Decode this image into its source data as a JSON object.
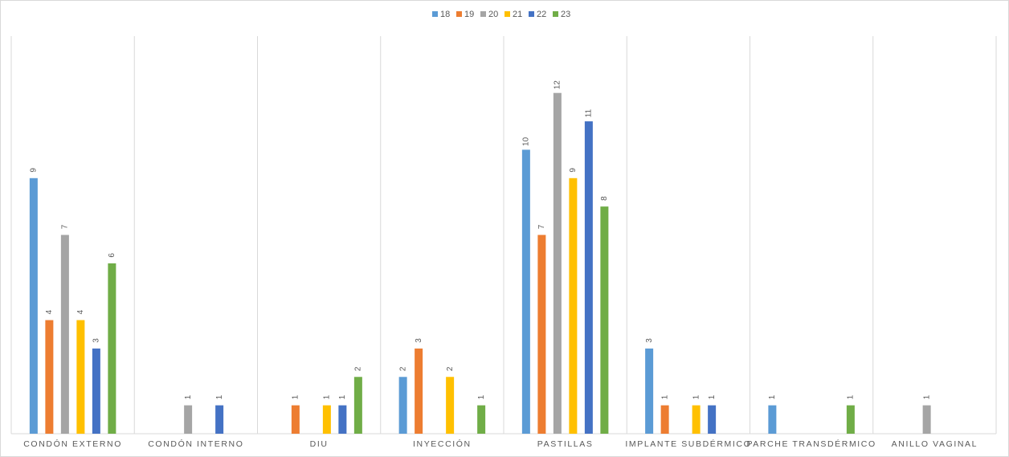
{
  "chart_data": {
    "type": "bar",
    "categories": [
      "CONDÓN EXTERNO",
      "CONDÓN INTERNO",
      "DIU",
      "INYECCIÓN",
      "PASTILLAS",
      "IMPLANTE SUBDÉRMICO",
      "PARCHE TRANSDÉRMICO",
      "ANILLO VAGINAL"
    ],
    "series": [
      {
        "name": "18",
        "color": "#5b9bd5",
        "values": [
          9,
          null,
          null,
          2,
          10,
          3,
          1,
          null
        ]
      },
      {
        "name": "19",
        "color": "#ed7d31",
        "values": [
          4,
          null,
          1,
          3,
          7,
          1,
          null,
          null
        ]
      },
      {
        "name": "20",
        "color": "#a5a5a5",
        "values": [
          7,
          1,
          null,
          null,
          12,
          null,
          null,
          1
        ]
      },
      {
        "name": "21",
        "color": "#ffc000",
        "values": [
          4,
          null,
          1,
          2,
          9,
          1,
          null,
          null
        ]
      },
      {
        "name": "22",
        "color": "#4472c4",
        "values": [
          3,
          1,
          1,
          null,
          11,
          1,
          null,
          null
        ]
      },
      {
        "name": "23",
        "color": "#70ad47",
        "values": [
          6,
          null,
          2,
          1,
          8,
          null,
          1,
          null
        ]
      }
    ],
    "ylim": [
      0,
      14
    ],
    "legend": "top"
  }
}
